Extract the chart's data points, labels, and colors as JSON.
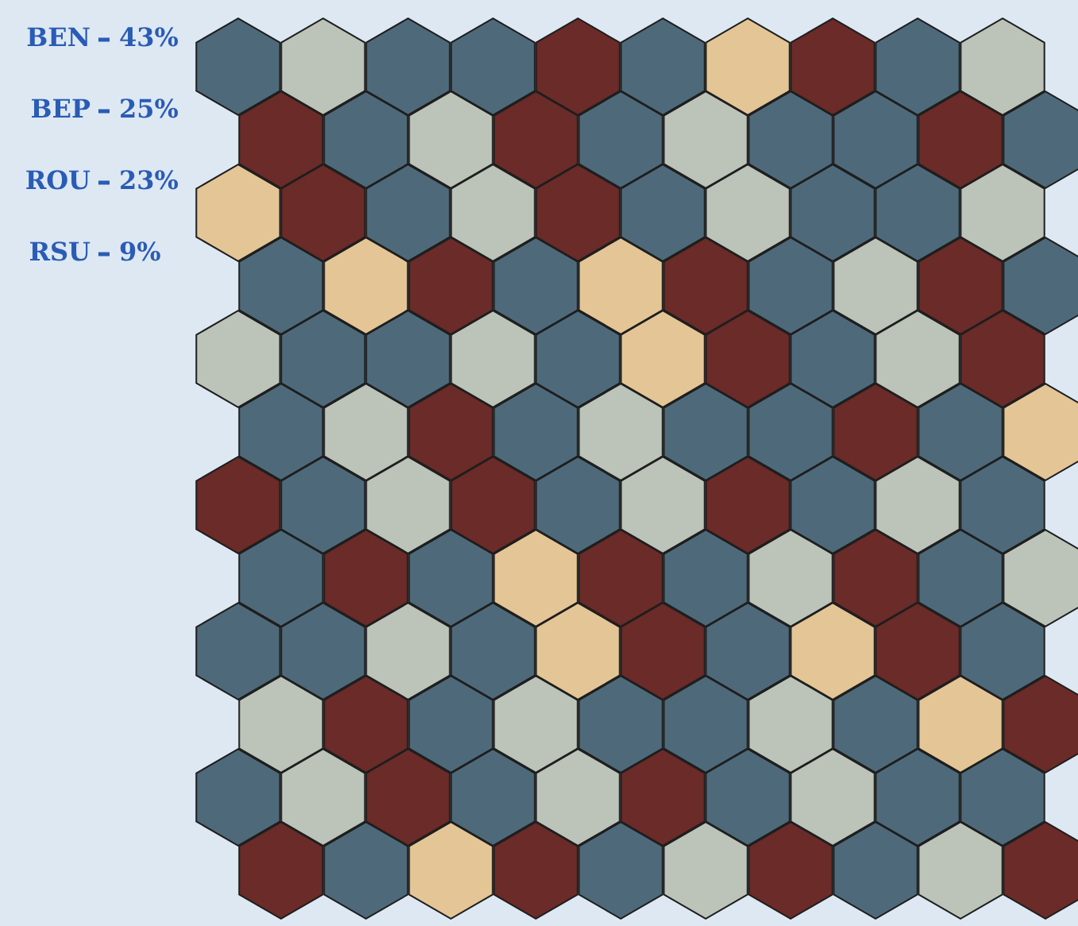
{
  "chart_data": {
    "type": "other",
    "categories": [
      "BEN",
      "BEP",
      "ROU",
      "RSU"
    ],
    "values": [
      43,
      25,
      23,
      9
    ],
    "value_labels": [
      "43%",
      "25%",
      "23%",
      "9%"
    ],
    "colors": [
      "#4e6a7a",
      "#6b2b28",
      "#bcc3b8",
      "#e4c596"
    ]
  }
}
